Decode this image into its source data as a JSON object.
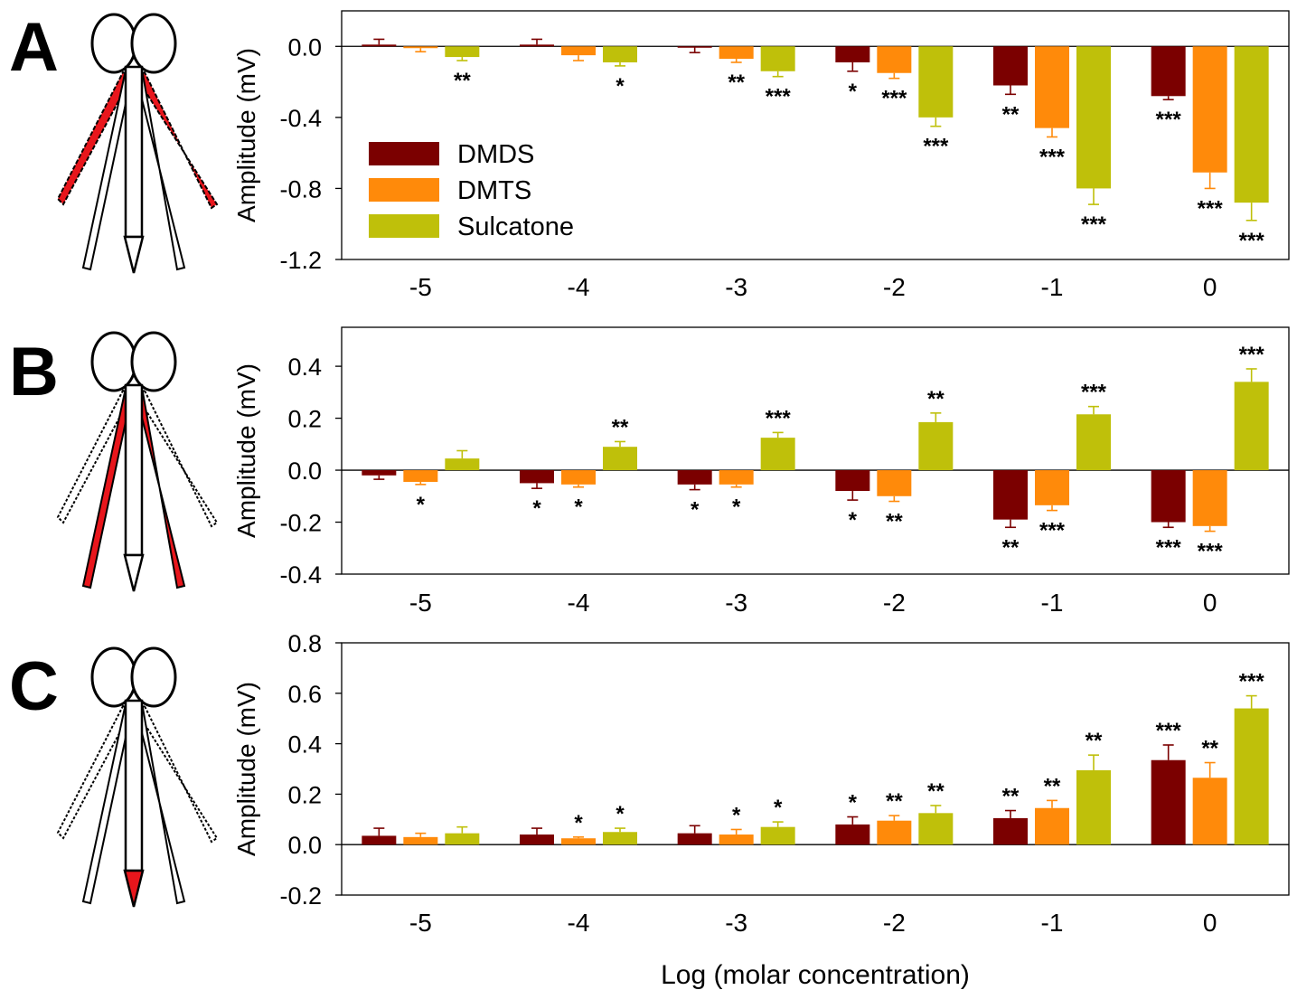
{
  "figure": {
    "xlabel": "Log (molar concentration)",
    "colors": {
      "DMDS": "#7b0000",
      "DMTS": "#ff8a0a",
      "Sulcatone": "#bfc00a",
      "highlight": "#e8161c"
    }
  },
  "legend": [
    {
      "name": "DMDS",
      "color": "#7b0000"
    },
    {
      "name": "DMTS",
      "color": "#ff8a0a"
    },
    {
      "name": "Sulcatone",
      "color": "#bfc00a"
    }
  ],
  "chart_data": [
    {
      "type": "bar",
      "panel_label": "A",
      "icon": "mosquito-head-icon",
      "highlight": "maxillary-palps",
      "ylabel": "Amplitude (mV)",
      "ylim": [
        -1.2,
        0.2
      ],
      "yticks": [
        "0.0",
        "-0.4",
        "-0.8",
        "-1.2"
      ],
      "yticks_values": [
        0.0,
        -0.4,
        -0.8,
        -1.2
      ],
      "categories": [
        "-5",
        "-4",
        "-3",
        "-2",
        "-1",
        "0"
      ],
      "legend_position": "lower-left",
      "series": [
        {
          "name": "DMDS",
          "values": [
            0.01,
            0.01,
            -0.005,
            -0.09,
            -0.22,
            -0.28
          ],
          "errors": [
            0.03,
            0.03,
            0.03,
            0.05,
            0.05,
            0.02
          ],
          "sig": [
            "",
            "",
            "",
            "*",
            "**",
            "***"
          ]
        },
        {
          "name": "DMTS",
          "values": [
            -0.01,
            -0.05,
            -0.07,
            -0.15,
            -0.46,
            -0.71
          ],
          "errors": [
            0.02,
            0.03,
            0.02,
            0.03,
            0.05,
            0.09
          ],
          "sig": [
            "",
            "",
            "**",
            "***",
            "***",
            "***"
          ]
        },
        {
          "name": "Sulcatone",
          "values": [
            -0.06,
            -0.09,
            -0.14,
            -0.4,
            -0.8,
            -0.88
          ],
          "errors": [
            0.02,
            0.02,
            0.03,
            0.05,
            0.09,
            0.1
          ],
          "sig": [
            "**",
            "*",
            "***",
            "***",
            "***",
            "***"
          ]
        }
      ]
    },
    {
      "type": "bar",
      "panel_label": "B",
      "icon": "mosquito-head-icon",
      "highlight": "proboscis-labella",
      "ylabel": "Amplitude (mV)",
      "ylim": [
        -0.4,
        0.55
      ],
      "yticks": [
        "0.4",
        "0.2",
        "0.0",
        "-0.2",
        "-0.4"
      ],
      "yticks_values": [
        0.4,
        0.2,
        0.0,
        -0.2,
        -0.4
      ],
      "categories": [
        "-5",
        "-4",
        "-3",
        "-2",
        "-1",
        "0"
      ],
      "series": [
        {
          "name": "DMDS",
          "values": [
            -0.02,
            -0.05,
            -0.055,
            -0.08,
            -0.19,
            -0.2
          ],
          "errors": [
            0.015,
            0.02,
            0.02,
            0.035,
            0.03,
            0.02
          ],
          "sig": [
            "",
            "*",
            "*",
            "*",
            "**",
            "***"
          ]
        },
        {
          "name": "DMTS",
          "values": [
            -0.045,
            -0.055,
            -0.055,
            -0.1,
            -0.135,
            -0.215
          ],
          "errors": [
            0.01,
            0.01,
            0.01,
            0.02,
            0.02,
            0.02
          ],
          "sig": [
            "*",
            "*",
            "*",
            "**",
            "***",
            "***"
          ]
        },
        {
          "name": "Sulcatone",
          "values": [
            0.045,
            0.09,
            0.125,
            0.185,
            0.215,
            0.34
          ],
          "errors": [
            0.03,
            0.02,
            0.02,
            0.035,
            0.03,
            0.05
          ],
          "sig": [
            "",
            "**",
            "***",
            "**",
            "***",
            "***"
          ]
        }
      ]
    },
    {
      "type": "bar",
      "panel_label": "C",
      "icon": "mosquito-head-icon",
      "highlight": "proboscis-tip",
      "ylabel": "Amplitude (mV)",
      "ylim": [
        -0.2,
        0.8
      ],
      "yticks": [
        "0.8",
        "0.6",
        "0.4",
        "0.2",
        "0.0",
        "-0.2"
      ],
      "yticks_values": [
        0.8,
        0.6,
        0.4,
        0.2,
        0.0,
        -0.2
      ],
      "categories": [
        "-5",
        "-4",
        "-3",
        "-2",
        "-1",
        "0"
      ],
      "series": [
        {
          "name": "DMDS",
          "values": [
            0.035,
            0.04,
            0.045,
            0.08,
            0.105,
            0.335
          ],
          "errors": [
            0.03,
            0.025,
            0.03,
            0.03,
            0.03,
            0.06
          ],
          "sig": [
            "",
            "",
            "",
            "*",
            "**",
            "***"
          ]
        },
        {
          "name": "DMTS",
          "values": [
            0.03,
            0.025,
            0.04,
            0.095,
            0.145,
            0.265
          ],
          "errors": [
            0.015,
            0.005,
            0.02,
            0.02,
            0.03,
            0.06
          ],
          "sig": [
            "",
            "*",
            "*",
            "**",
            "**",
            "**"
          ]
        },
        {
          "name": "Sulcatone",
          "values": [
            0.045,
            0.05,
            0.07,
            0.125,
            0.295,
            0.54
          ],
          "errors": [
            0.025,
            0.015,
            0.02,
            0.03,
            0.06,
            0.05
          ],
          "sig": [
            "",
            "*",
            "*",
            "**",
            "**",
            "***"
          ]
        }
      ]
    }
  ]
}
